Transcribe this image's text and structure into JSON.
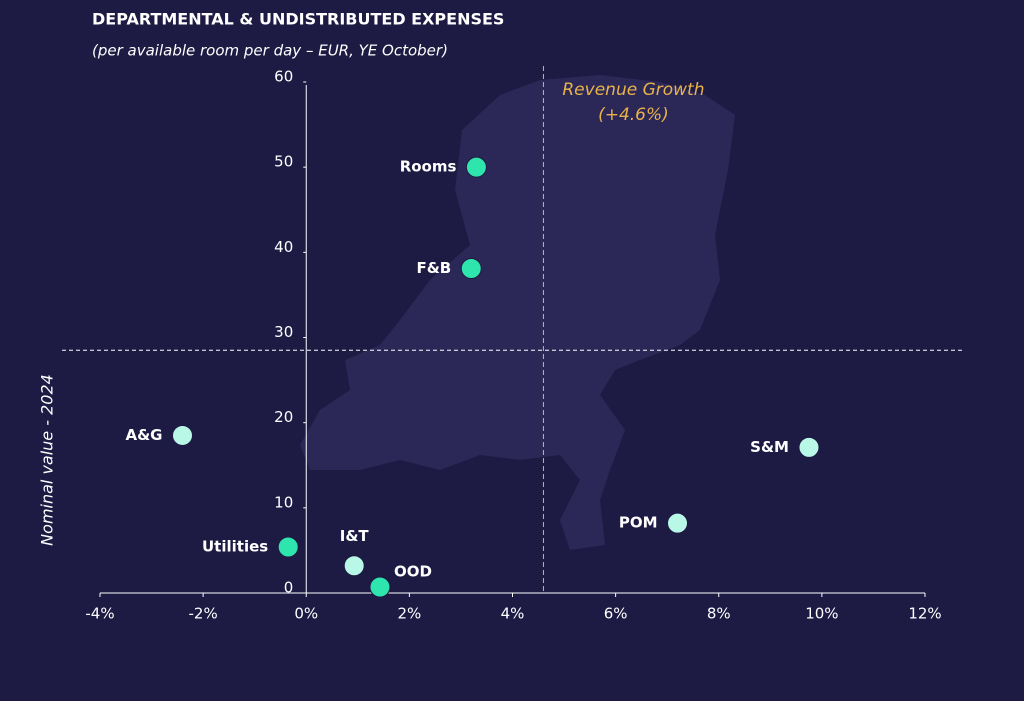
{
  "chart_data": {
    "type": "scatter",
    "title": "DEPARTMENTAL & UNDISTRIBUTED EXPENSES",
    "subtitle": "(per available room per day – EUR, YE October)",
    "y_label": "Nominal value - 2024",
    "labels": [
      "Rooms",
      "F&B",
      "A&G",
      "S&M",
      "POM",
      "Utilities",
      "I&T",
      "OOD"
    ],
    "x": [
      3.3,
      3.2,
      -2.4,
      9.75,
      7.2,
      -0.35,
      0.93,
      1.43
    ],
    "y": [
      50,
      38.1,
      18.5,
      17.1,
      8.2,
      5.4,
      3.2,
      0.7
    ],
    "colors": [
      "#2ee6ad",
      "#2ee6ad",
      "#b9f7e6",
      "#b9f7e6",
      "#b9f7e6",
      "#2ee6ad",
      "#b9f7e6",
      "#2ee6ad"
    ],
    "xlim": [
      -4,
      12
    ],
    "xticks": [
      {
        "value": -4,
        "label": "-4%"
      },
      {
        "value": -2,
        "label": "-2%"
      },
      {
        "value": 0,
        "label": "0%"
      },
      {
        "value": 2,
        "label": "2%"
      },
      {
        "value": 4,
        "label": "4%"
      },
      {
        "value": 6,
        "label": "6%"
      },
      {
        "value": 8,
        "label": "8%"
      },
      {
        "value": 10,
        "label": "10%"
      },
      {
        "value": 12,
        "label": "12%"
      }
    ],
    "ylim": [
      0,
      60
    ],
    "yticks": [
      0,
      10,
      20,
      30,
      40,
      50,
      60
    ],
    "revenue_growth": {
      "name": "Revenue Growth",
      "value": 4.6,
      "label": "(+4.6%)",
      "color": "#e9b24a"
    },
    "y_reference": 28.5
  }
}
